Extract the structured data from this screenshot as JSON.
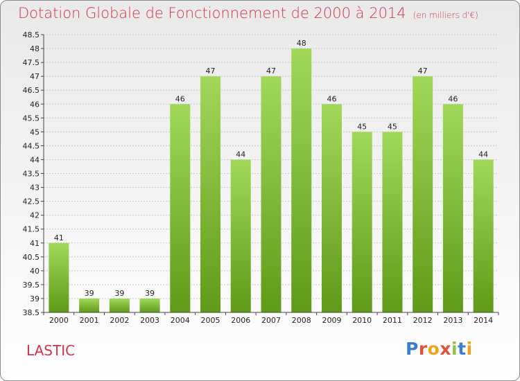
{
  "header": {
    "title": "Dotation Globale de Fonctionnement de 2000 à 2014",
    "unit": "(en milliers d'€)"
  },
  "footer": {
    "city": "LASTIC",
    "logo_text": "Proxiti"
  },
  "colors": {
    "title": "#d2344a",
    "bar_light": "#a2d85a",
    "bar_dark": "#5f9a18",
    "grid": "#c8c8c8"
  },
  "chart_data": {
    "type": "bar",
    "title": "Dotation Globale de Fonctionnement de 2000 à 2014",
    "subtitle": "(en milliers d'€)",
    "xlabel": "",
    "ylabel": "",
    "categories": [
      "2000",
      "2001",
      "2002",
      "2003",
      "2004",
      "2005",
      "2006",
      "2007",
      "2008",
      "2009",
      "2010",
      "2011",
      "2012",
      "2013",
      "2014"
    ],
    "values": [
      41,
      39,
      39,
      39,
      46,
      47,
      44,
      47,
      48,
      46,
      45,
      45,
      47,
      46,
      44
    ],
    "ylim": [
      38.5,
      48.5
    ],
    "yticks": [
      38.5,
      39,
      39.5,
      40,
      40.5,
      41,
      41.5,
      42,
      42.5,
      43,
      43.5,
      44,
      44.5,
      45,
      45.5,
      46,
      46.5,
      47,
      47.5,
      48,
      48.5
    ],
    "grid": true,
    "data_labels": true
  }
}
